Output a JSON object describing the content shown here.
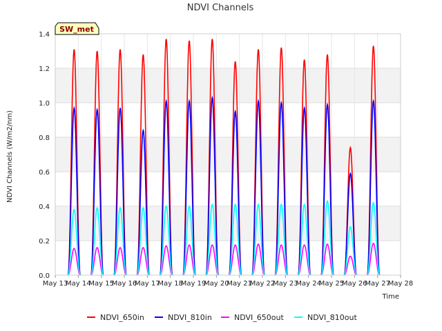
{
  "chart_data": {
    "type": "line",
    "title": "NDVI Channels",
    "xlabel": "Time",
    "ylabel": "NDVI Channels (W/m2/nm)",
    "badge": "SW_met",
    "ylim": [
      0.0,
      1.4
    ],
    "xlim": [
      0,
      15
    ],
    "x_tick_labels": [
      "May 13",
      "May 14",
      "May 15",
      "May 16",
      "May 17",
      "May 18",
      "May 19",
      "May 20",
      "May 21",
      "May 22",
      "May 23",
      "May 24",
      "May 25",
      "May 26",
      "May 27",
      "May 28"
    ],
    "y_ticks": [
      0.0,
      0.2,
      0.4,
      0.6,
      0.8,
      1.0,
      1.2,
      1.4
    ],
    "y_tick_labels": [
      "0.0",
      "0.2",
      "0.4",
      "0.6",
      "0.8",
      "1.0",
      "1.2",
      "1.4"
    ],
    "series": [
      {
        "name": "NDVI_650in",
        "color": "#ff0000",
        "daily_peaks": [
          1.31,
          1.3,
          1.31,
          1.28,
          1.37,
          1.36,
          1.37,
          1.24,
          1.31,
          1.32,
          1.25,
          1.28,
          0.74,
          1.33
        ]
      },
      {
        "name": "NDVI_810in",
        "color": "#0000ff",
        "daily_peaks": [
          0.97,
          0.96,
          0.97,
          0.84,
          1.01,
          1.01,
          1.03,
          0.95,
          1.01,
          1.0,
          0.97,
          0.99,
          0.59,
          1.01
        ]
      },
      {
        "name": "NDVI_650out",
        "color": "#ff00ff",
        "daily_peaks": [
          0.155,
          0.16,
          0.16,
          0.16,
          0.17,
          0.175,
          0.175,
          0.175,
          0.18,
          0.175,
          0.175,
          0.18,
          0.11,
          0.185
        ]
      },
      {
        "name": "NDVI_810out",
        "color": "#00ffff",
        "daily_peaks": [
          0.38,
          0.39,
          0.39,
          0.39,
          0.4,
          0.4,
          0.41,
          0.41,
          0.41,
          0.41,
          0.41,
          0.43,
          0.28,
          0.42
        ]
      }
    ],
    "grid": true,
    "legend_position": "bottom"
  }
}
